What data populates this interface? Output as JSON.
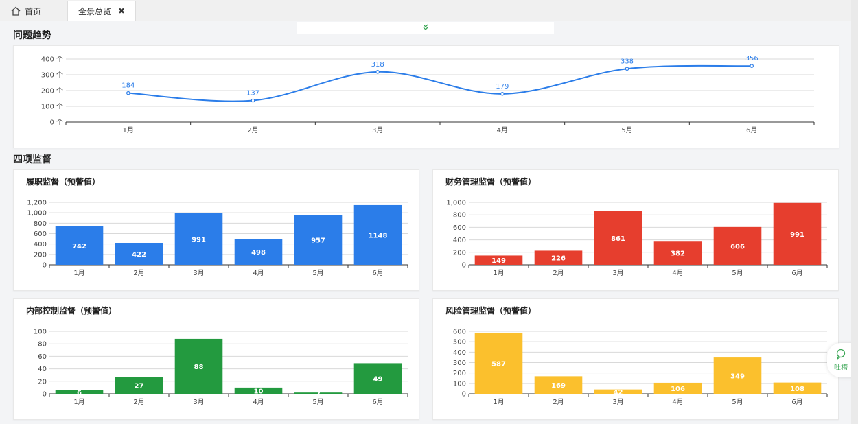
{
  "tabs": {
    "home_label": "首页",
    "active_label": "全景总览",
    "close_glyph": "✖"
  },
  "sections": {
    "trend_title": "问题趋势",
    "monitor_title": "四项监督"
  },
  "side_button": {
    "label": "吐槽"
  },
  "colors": {
    "blue": "#2b7de9",
    "red": "#e63e2e",
    "green": "#239a3f",
    "yellow": "#fbc02d"
  },
  "chart_data": [
    {
      "id": "trend",
      "type": "line",
      "title": "",
      "categories": [
        "1月",
        "2月",
        "3月",
        "4月",
        "5月",
        "6月"
      ],
      "series": [
        {
          "values": [
            184,
            137,
            318,
            179,
            338,
            356
          ]
        }
      ],
      "yticks": [
        "0 个",
        "100 个",
        "200 个",
        "300 个",
        "400 个"
      ],
      "ylim": [
        0,
        400
      ],
      "color": "#2b7de9",
      "grid": true
    },
    {
      "id": "lvzhi",
      "type": "bar",
      "title": "履职监督（预警值）",
      "categories": [
        "1月",
        "2月",
        "3月",
        "4月",
        "5月",
        "6月"
      ],
      "values": [
        742,
        422,
        991,
        498,
        957,
        1148
      ],
      "yticks": [
        "0",
        "200",
        "400",
        "600",
        "800",
        "1,000",
        "1,200"
      ],
      "ylim": [
        0,
        1200
      ],
      "color": "#2b7de9",
      "grid": true
    },
    {
      "id": "caiwu",
      "type": "bar",
      "title": "财务管理监督（预警值）",
      "categories": [
        "1月",
        "2月",
        "3月",
        "4月",
        "5月",
        "6月"
      ],
      "values": [
        149,
        226,
        861,
        382,
        606,
        991
      ],
      "yticks": [
        "0",
        "200",
        "400",
        "600",
        "800",
        "1,000"
      ],
      "ylim": [
        0,
        1000
      ],
      "color": "#e63e2e",
      "grid": true
    },
    {
      "id": "neibu",
      "type": "bar",
      "title": "内部控制监督（预警值）",
      "categories": [
        "1月",
        "2月",
        "3月",
        "4月",
        "5月",
        "6月"
      ],
      "values": [
        6,
        27,
        88,
        10,
        2,
        49
      ],
      "yticks": [
        "0",
        "20",
        "40",
        "60",
        "80",
        "100"
      ],
      "ylim": [
        0,
        100
      ],
      "color": "#239a3f",
      "grid": true
    },
    {
      "id": "fengxian",
      "type": "bar",
      "title": "风险管理监督（预警值）",
      "categories": [
        "1月",
        "2月",
        "3月",
        "4月",
        "5月",
        "6月"
      ],
      "values": [
        587,
        169,
        42,
        106,
        349,
        108
      ],
      "yticks": [
        "0",
        "100",
        "200",
        "300",
        "400",
        "500",
        "600"
      ],
      "ylim": [
        0,
        600
      ],
      "color": "#fbc02d",
      "grid": true
    }
  ]
}
